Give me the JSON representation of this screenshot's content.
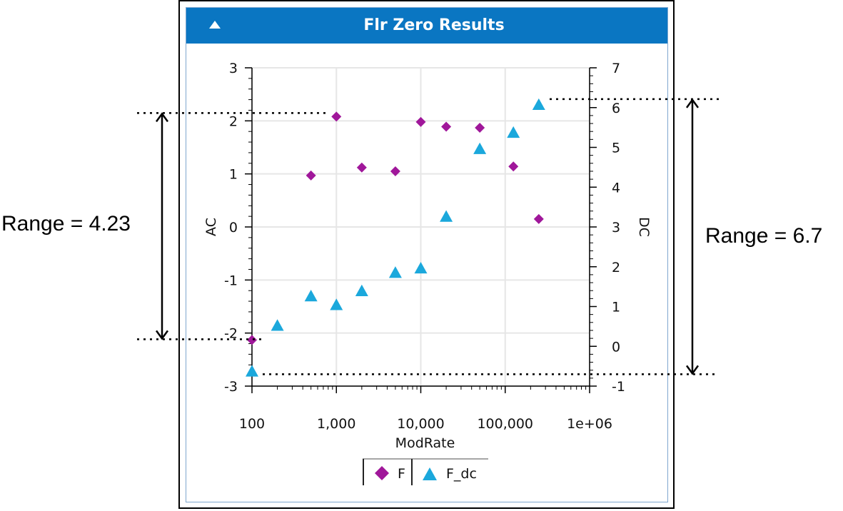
{
  "panel": {
    "title": "Flr Zero Results",
    "accent_color": "#0a76c2",
    "icon": "triangle-up-icon"
  },
  "chart_data": {
    "type": "scatter",
    "xlabel": "ModRate",
    "xscale": "log",
    "xlim": [
      100,
      1000000
    ],
    "x_ticks": [
      "100",
      "1,000",
      "10,000",
      "100,000",
      "1e+06"
    ],
    "y_left": {
      "label": "AC",
      "lim": [
        -3,
        3
      ],
      "ticks": [
        "-3",
        "-2",
        "-1",
        "0",
        "1",
        "2",
        "3"
      ]
    },
    "y_right": {
      "label": "DC",
      "lim": [
        -1,
        7
      ],
      "ticks": [
        "-1",
        "0",
        "1",
        "2",
        "3",
        "4",
        "5",
        "6",
        "7"
      ]
    },
    "grid": true,
    "legend_position": "bottom-center",
    "series": [
      {
        "name": "F",
        "axis": "left",
        "marker": "diamond",
        "color": "#a0179a",
        "points": [
          [
            100,
            -2.13
          ],
          [
            500,
            0.97
          ],
          [
            1000,
            2.08
          ],
          [
            2000,
            1.12
          ],
          [
            5000,
            1.05
          ],
          [
            10000,
            1.98
          ],
          [
            20000,
            1.89
          ],
          [
            50000,
            1.87
          ],
          [
            125000,
            1.14
          ],
          [
            250000,
            0.15
          ]
        ]
      },
      {
        "name": "F_dc",
        "axis": "right",
        "marker": "triangle",
        "color": "#1ba8dc",
        "points": [
          [
            100,
            -0.63
          ],
          [
            200,
            0.52
          ],
          [
            500,
            1.26
          ],
          [
            1000,
            1.04
          ],
          [
            2000,
            1.39
          ],
          [
            5000,
            1.85
          ],
          [
            10000,
            1.96
          ],
          [
            20000,
            3.26
          ],
          [
            50000,
            4.96
          ],
          [
            125000,
            5.37
          ],
          [
            250000,
            6.07
          ]
        ]
      }
    ],
    "annotations": {
      "left_range_label": "Range = 4.23",
      "right_range_label": "Range = 6.7"
    }
  }
}
